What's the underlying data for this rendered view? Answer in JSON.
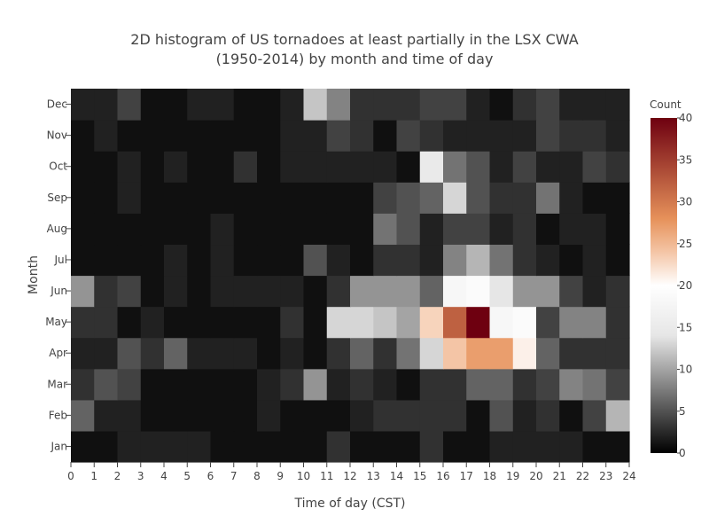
{
  "chart_data": {
    "type": "heatmap",
    "title_lines": [
      "2D histogram of US tornadoes at least partially in the LSX CWA",
      "(1950-2014) by month and time of day"
    ],
    "xlabel": "Time of day (CST)",
    "ylabel": "Month",
    "xlim": [
      0,
      24
    ],
    "x_ticks": [
      "0",
      "1",
      "2",
      "3",
      "4",
      "5",
      "6",
      "7",
      "8",
      "9",
      "10",
      "11",
      "12",
      "13",
      "14",
      "15",
      "16",
      "17",
      "18",
      "19",
      "20",
      "21",
      "22",
      "23",
      "24"
    ],
    "y_categories": [
      "Jan",
      "Feb",
      "Mar",
      "Apr",
      "May",
      "Jun",
      "Jul",
      "Aug",
      "Sep",
      "Oct",
      "Nov",
      "Dec"
    ],
    "colorbar": {
      "title": "Count",
      "min": 0,
      "max": 40,
      "ticks": [
        "0",
        "5",
        "10",
        "15",
        "20",
        "25",
        "30",
        "35",
        "40"
      ],
      "colorscale": [
        [
          0,
          "#000000"
        ],
        [
          0.35,
          "#e6e6e6"
        ],
        [
          0.5,
          "#ffffff"
        ],
        [
          0.6,
          "#e6915a"
        ],
        [
          0.7,
          "#e6915a"
        ],
        [
          1,
          "#b20a1c"
        ]
      ],
      "colorscale_stops": [
        {
          "pos": 0.0,
          "color": "#000000"
        },
        {
          "pos": 0.35,
          "color": "#e6e6e6"
        },
        {
          "pos": 0.5,
          "color": "#ffffff"
        },
        {
          "pos": 0.6,
          "color": "#f4c5a6"
        },
        {
          "pos": 0.7,
          "color": "#e6915a"
        },
        {
          "pos": 1.0,
          "color": "#6e0010"
        }
      ]
    },
    "z": [
      [
        1,
        1,
        2,
        2,
        2,
        2,
        1,
        1,
        1,
        1,
        1,
        3,
        1,
        1,
        1,
        3,
        1,
        1,
        2,
        2,
        2,
        2,
        1,
        1
      ],
      [
        6,
        2,
        2,
        1,
        1,
        1,
        1,
        1,
        2,
        1,
        1,
        1,
        2,
        3,
        3,
        3,
        3,
        1,
        5,
        2,
        3,
        1,
        4,
        11
      ],
      [
        3,
        5,
        4,
        1,
        1,
        1,
        1,
        1,
        2,
        3,
        9,
        2,
        3,
        2,
        1,
        3,
        3,
        6,
        6,
        3,
        4,
        8,
        7,
        4
      ],
      [
        2,
        2,
        5,
        3,
        6,
        2,
        2,
        2,
        1,
        2,
        1,
        3,
        6,
        3,
        7,
        13,
        24,
        27,
        27,
        21,
        6,
        3,
        3,
        3
      ],
      [
        3,
        3,
        1,
        2,
        1,
        1,
        1,
        1,
        1,
        3,
        1,
        13,
        13,
        12,
        10,
        23,
        32,
        40,
        18,
        19,
        4,
        8,
        8,
        3
      ],
      [
        9,
        3,
        4,
        1,
        2,
        1,
        2,
        2,
        2,
        2,
        1,
        3,
        9,
        9,
        9,
        6,
        18,
        19,
        14,
        9,
        9,
        4,
        2,
        3
      ],
      [
        1,
        1,
        1,
        1,
        2,
        1,
        2,
        1,
        1,
        1,
        5,
        2,
        1,
        3,
        3,
        2,
        8,
        11,
        7,
        3,
        2,
        1,
        2,
        1
      ],
      [
        1,
        1,
        1,
        1,
        1,
        1,
        2,
        1,
        1,
        1,
        1,
        1,
        1,
        7,
        5,
        2,
        4,
        4,
        2,
        3,
        1,
        2,
        2,
        1
      ],
      [
        1,
        1,
        2,
        1,
        1,
        1,
        1,
        1,
        1,
        1,
        1,
        1,
        1,
        4,
        5,
        6,
        13,
        5,
        3,
        3,
        7,
        2,
        1,
        1
      ],
      [
        1,
        1,
        2,
        1,
        2,
        1,
        1,
        3,
        1,
        2,
        2,
        2,
        2,
        2,
        1,
        15,
        7,
        5,
        2,
        4,
        2,
        2,
        4,
        3
      ],
      [
        1,
        2,
        1,
        1,
        1,
        1,
        1,
        1,
        1,
        2,
        2,
        4,
        3,
        1,
        4,
        3,
        2,
        2,
        2,
        2,
        4,
        3,
        3,
        2
      ],
      [
        2,
        2,
        4,
        1,
        1,
        2,
        2,
        1,
        1,
        2,
        12,
        8,
        3,
        3,
        3,
        4,
        4,
        2,
        1,
        3,
        4,
        2,
        2,
        2
      ]
    ]
  }
}
